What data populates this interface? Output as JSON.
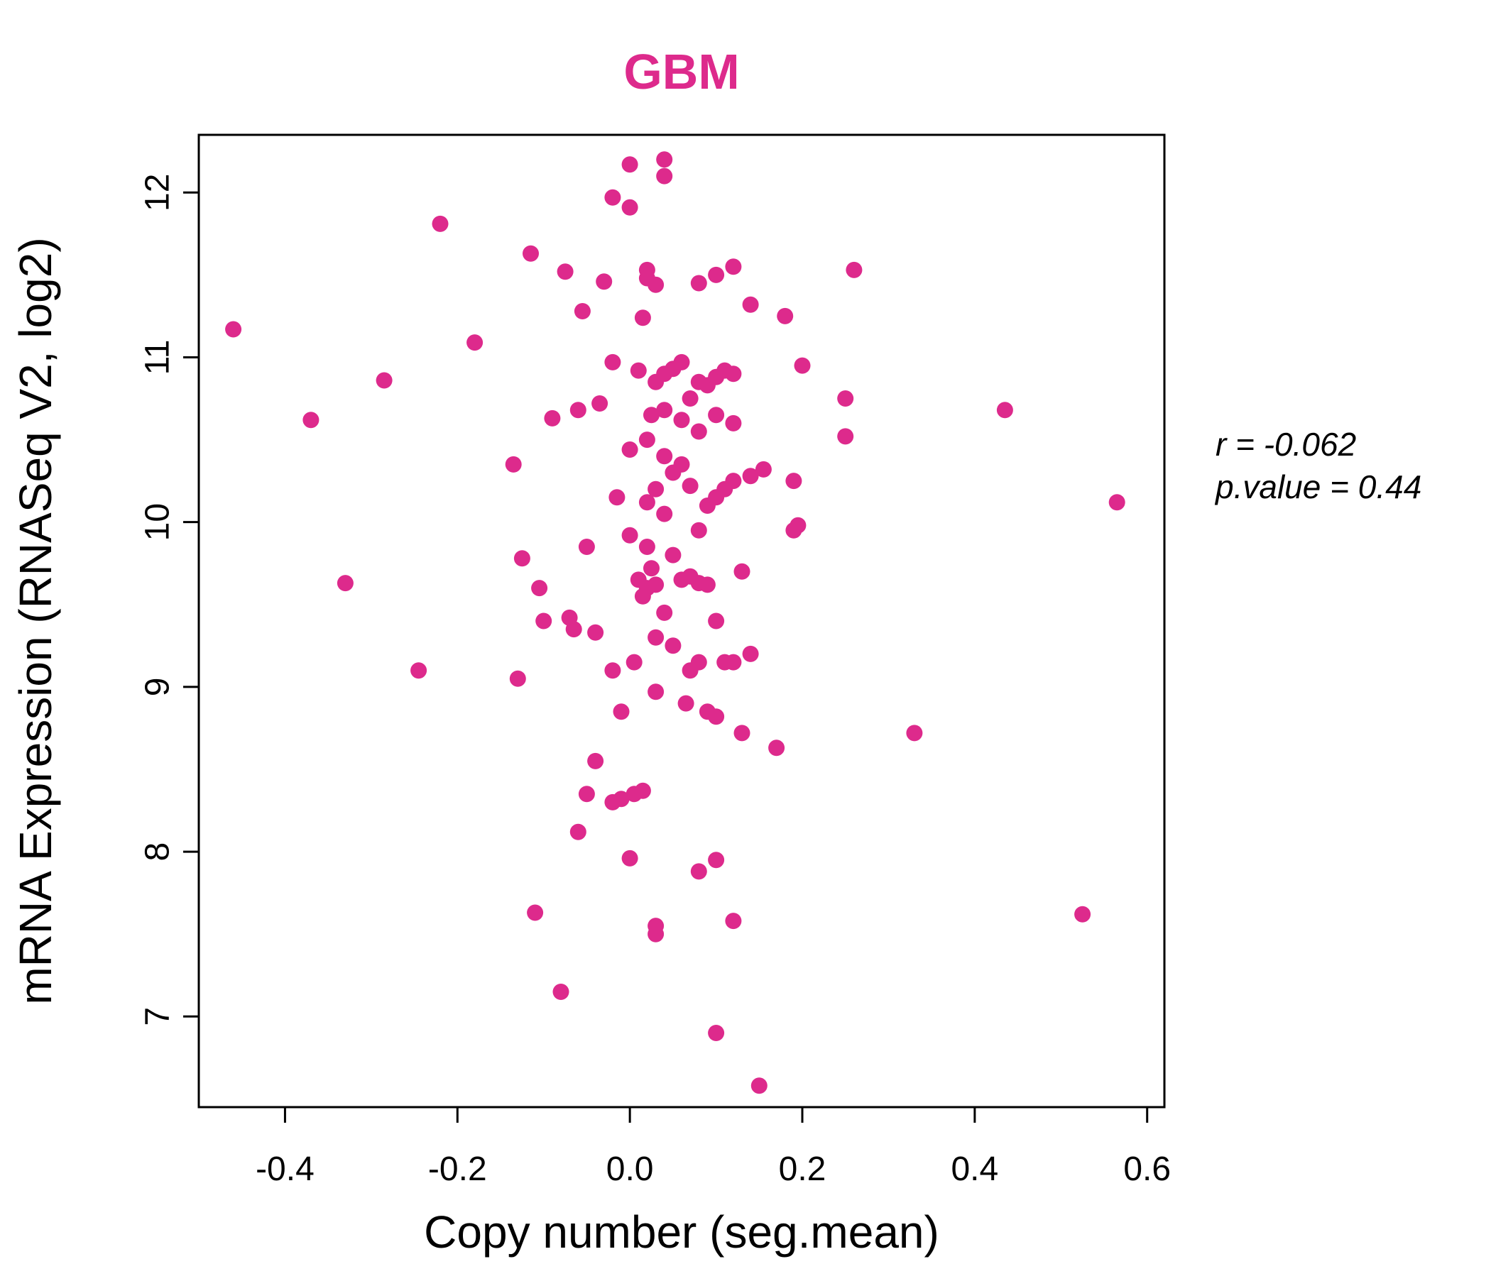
{
  "colors": {
    "accent": "#DD2A8C",
    "point": "#DD2A8C",
    "axis": "#000000"
  },
  "annotation": {
    "line1": "r = -0.062",
    "line2": "p.value = 0.44"
  },
  "chart_data": {
    "type": "scatter",
    "title": "GBM",
    "xlabel": "Copy number (seg.mean)",
    "ylabel": "mRNA Expression (RNASeq V2, log2)",
    "xlim": [
      -0.5,
      0.62
    ],
    "ylim": [
      6.45,
      12.35
    ],
    "x_ticks": [
      -0.4,
      -0.2,
      0.0,
      0.2,
      0.4,
      0.6
    ],
    "x_tick_labels": [
      "-0.4",
      "-0.2",
      "0.0",
      "0.2",
      "0.4",
      "0.6"
    ],
    "y_ticks": [
      7,
      8,
      9,
      10,
      11,
      12
    ],
    "y_tick_labels": [
      "7",
      "8",
      "9",
      "10",
      "11",
      "12"
    ],
    "grid": false,
    "legend": "none",
    "point_color": "#DD2A8C",
    "point_radius": 11.5,
    "stats": {
      "r": -0.062,
      "p_value": 0.44
    },
    "points": [
      [
        -0.46,
        11.17
      ],
      [
        -0.37,
        10.62
      ],
      [
        -0.33,
        9.63
      ],
      [
        -0.285,
        10.86
      ],
      [
        -0.245,
        9.1
      ],
      [
        -0.22,
        11.81
      ],
      [
        -0.18,
        11.09
      ],
      [
        -0.135,
        10.35
      ],
      [
        -0.13,
        9.05
      ],
      [
        -0.125,
        9.78
      ],
      [
        -0.115,
        11.63
      ],
      [
        -0.11,
        7.63
      ],
      [
        -0.105,
        9.6
      ],
      [
        -0.1,
        9.4
      ],
      [
        -0.09,
        10.63
      ],
      [
        -0.08,
        7.15
      ],
      [
        -0.075,
        11.52
      ],
      [
        -0.07,
        9.42
      ],
      [
        -0.065,
        9.35
      ],
      [
        -0.06,
        10.68
      ],
      [
        -0.06,
        8.12
      ],
      [
        -0.055,
        11.28
      ],
      [
        -0.05,
        9.85
      ],
      [
        -0.05,
        8.35
      ],
      [
        -0.04,
        9.33
      ],
      [
        -0.04,
        8.55
      ],
      [
        -0.035,
        10.72
      ],
      [
        -0.03,
        11.46
      ],
      [
        -0.02,
        11.97
      ],
      [
        -0.02,
        10.97
      ],
      [
        -0.02,
        9.1
      ],
      [
        -0.02,
        8.3
      ],
      [
        -0.015,
        10.15
      ],
      [
        -0.01,
        8.85
      ],
      [
        -0.01,
        8.32
      ],
      [
        0.0,
        12.17
      ],
      [
        0.0,
        11.91
      ],
      [
        0.0,
        10.44
      ],
      [
        0.0,
        9.92
      ],
      [
        0.0,
        7.96
      ],
      [
        0.005,
        9.15
      ],
      [
        0.005,
        8.35
      ],
      [
        0.01,
        10.92
      ],
      [
        0.01,
        9.65
      ],
      [
        0.015,
        11.24
      ],
      [
        0.015,
        9.55
      ],
      [
        0.015,
        8.37
      ],
      [
        0.02,
        11.53
      ],
      [
        0.02,
        11.48
      ],
      [
        0.02,
        10.5
      ],
      [
        0.02,
        10.12
      ],
      [
        0.02,
        9.85
      ],
      [
        0.02,
        9.6
      ],
      [
        0.025,
        10.65
      ],
      [
        0.025,
        9.72
      ],
      [
        0.03,
        11.44
      ],
      [
        0.03,
        10.85
      ],
      [
        0.03,
        10.2
      ],
      [
        0.03,
        9.62
      ],
      [
        0.03,
        9.3
      ],
      [
        0.03,
        8.97
      ],
      [
        0.03,
        7.55
      ],
      [
        0.03,
        7.5
      ],
      [
        0.04,
        12.2
      ],
      [
        0.04,
        12.1
      ],
      [
        0.04,
        10.9
      ],
      [
        0.04,
        10.68
      ],
      [
        0.04,
        10.4
      ],
      [
        0.04,
        10.05
      ],
      [
        0.04,
        9.45
      ],
      [
        0.05,
        10.93
      ],
      [
        0.05,
        10.3
      ],
      [
        0.05,
        9.8
      ],
      [
        0.05,
        9.25
      ],
      [
        0.06,
        10.97
      ],
      [
        0.06,
        10.62
      ],
      [
        0.06,
        10.35
      ],
      [
        0.06,
        9.65
      ],
      [
        0.065,
        8.9
      ],
      [
        0.07,
        10.75
      ],
      [
        0.07,
        10.22
      ],
      [
        0.07,
        9.67
      ],
      [
        0.07,
        9.1
      ],
      [
        0.08,
        11.45
      ],
      [
        0.08,
        10.85
      ],
      [
        0.08,
        10.55
      ],
      [
        0.08,
        9.95
      ],
      [
        0.08,
        9.63
      ],
      [
        0.08,
        9.15
      ],
      [
        0.08,
        7.88
      ],
      [
        0.09,
        10.83
      ],
      [
        0.09,
        10.1
      ],
      [
        0.09,
        9.62
      ],
      [
        0.09,
        8.85
      ],
      [
        0.1,
        11.5
      ],
      [
        0.1,
        10.88
      ],
      [
        0.1,
        10.65
      ],
      [
        0.1,
        10.15
      ],
      [
        0.1,
        9.4
      ],
      [
        0.1,
        8.82
      ],
      [
        0.1,
        7.95
      ],
      [
        0.1,
        6.9
      ],
      [
        0.11,
        10.92
      ],
      [
        0.11,
        10.2
      ],
      [
        0.11,
        9.15
      ],
      [
        0.12,
        11.55
      ],
      [
        0.12,
        10.9
      ],
      [
        0.12,
        10.6
      ],
      [
        0.12,
        10.25
      ],
      [
        0.12,
        9.15
      ],
      [
        0.12,
        7.58
      ],
      [
        0.13,
        9.7
      ],
      [
        0.13,
        8.72
      ],
      [
        0.14,
        11.32
      ],
      [
        0.14,
        10.28
      ],
      [
        0.14,
        9.2
      ],
      [
        0.15,
        6.58
      ],
      [
        0.155,
        10.32
      ],
      [
        0.17,
        8.63
      ],
      [
        0.18,
        11.25
      ],
      [
        0.19,
        10.25
      ],
      [
        0.19,
        9.95
      ],
      [
        0.195,
        9.98
      ],
      [
        0.2,
        10.95
      ],
      [
        0.25,
        10.75
      ],
      [
        0.25,
        10.52
      ],
      [
        0.26,
        11.53
      ],
      [
        0.33,
        8.72
      ],
      [
        0.435,
        10.68
      ],
      [
        0.525,
        7.62
      ],
      [
        0.565,
        10.12
      ]
    ]
  }
}
